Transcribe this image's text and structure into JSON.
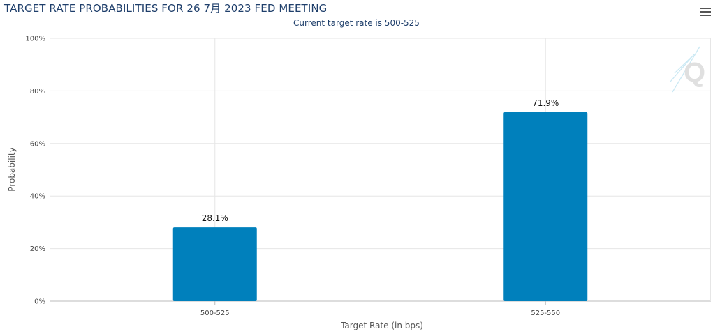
{
  "header": {
    "title": "TARGET RATE PROBABILITIES FOR 26 7月 2023 FED MEETING",
    "subtitle": "Current target rate is 500-525",
    "menu_icon": "hamburger-menu-icon",
    "logo_letter": "Q"
  },
  "colors": {
    "bar": "#0080bc",
    "grid": "#e6e6e6",
    "title": "#1f3f6b"
  },
  "chart_data": {
    "type": "bar",
    "title": "TARGET RATE PROBABILITIES FOR 26 7月 2023 FED MEETING",
    "subtitle": "Current target rate is 500-525",
    "categories": [
      "500-525",
      "525-550"
    ],
    "values": [
      28.1,
      71.9
    ],
    "data_labels": [
      "28.1%",
      "71.9%"
    ],
    "xlabel": "Target Rate (in bps)",
    "ylabel": "Probability",
    "ylim": [
      0,
      100
    ],
    "yticks": [
      "0%",
      "20%",
      "40%",
      "60%",
      "80%",
      "100%"
    ],
    "grid": true,
    "legend": "none"
  }
}
